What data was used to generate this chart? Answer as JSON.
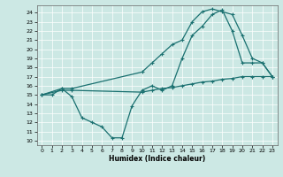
{
  "xlabel": "Humidex (Indice chaleur)",
  "bg_color": "#cce8e4",
  "grid_color": "#ffffff",
  "line_color": "#1a7070",
  "xlim": [
    -0.5,
    23.5
  ],
  "ylim": [
    9.5,
    24.8
  ],
  "yticks": [
    10,
    11,
    12,
    13,
    14,
    15,
    16,
    17,
    18,
    19,
    20,
    21,
    22,
    23,
    24
  ],
  "xticks": [
    0,
    1,
    2,
    3,
    4,
    5,
    6,
    7,
    8,
    9,
    10,
    11,
    12,
    13,
    14,
    15,
    16,
    17,
    18,
    19,
    20,
    21,
    22,
    23
  ],
  "line_wavy_x": [
    0,
    1,
    2,
    3,
    4,
    5,
    6,
    7,
    8,
    9,
    10,
    11,
    12,
    13,
    14,
    15,
    16,
    17,
    18,
    19,
    20,
    21,
    22,
    23
  ],
  "line_wavy_y": [
    15,
    15,
    15.7,
    14.8,
    12.5,
    12,
    11.5,
    10.3,
    10.3,
    13.8,
    15.5,
    16,
    15.5,
    16,
    19,
    21.5,
    22.5,
    23.8,
    24.3,
    22,
    18.5,
    18.5,
    18.5,
    17
  ],
  "line_diag_x": [
    0,
    2,
    3,
    10,
    11,
    12,
    13,
    14,
    15,
    16,
    17,
    18,
    19,
    20,
    21,
    22,
    23
  ],
  "line_diag_y": [
    15,
    15.5,
    15.5,
    15.3,
    15.5,
    15.7,
    15.8,
    16.0,
    16.2,
    16.4,
    16.5,
    16.7,
    16.8,
    17.0,
    17.0,
    17.0,
    17.0
  ],
  "line_peak_x": [
    0,
    2,
    3,
    10,
    11,
    12,
    13,
    14,
    15,
    16,
    17,
    18,
    19,
    20,
    21,
    22,
    23
  ],
  "line_peak_y": [
    15,
    15.7,
    15.7,
    17.5,
    18.5,
    19.5,
    20.5,
    21.0,
    23.0,
    24.1,
    24.4,
    24.1,
    23.8,
    21.5,
    19.0,
    18.5,
    17.0
  ]
}
